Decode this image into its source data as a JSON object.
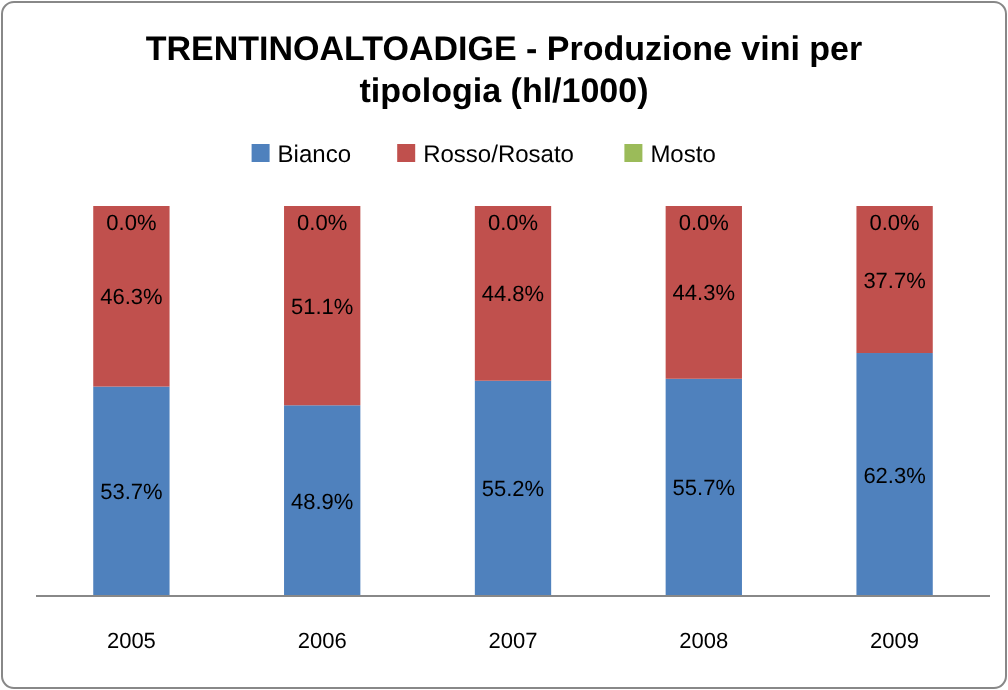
{
  "chart_data": {
    "type": "bar",
    "title": "TRENTINOALTOADIGE - Produzione vini per tipologia (hl/1000)",
    "categories": [
      "2005",
      "2006",
      "2007",
      "2008",
      "2009"
    ],
    "stacked": true,
    "legend": "top",
    "ylim": [
      0,
      100
    ],
    "tick_labels": "x",
    "series": [
      {
        "name": "Bianco",
        "color": "#4f81bd",
        "values": [
          53.7,
          48.9,
          55.2,
          55.7,
          62.3
        ],
        "value_labels": [
          "53.7%",
          "48.9%",
          "55.2%",
          "55.7%",
          "62.3%"
        ]
      },
      {
        "name": "Rosso/Rosato",
        "color": "#c0504d",
        "values": [
          46.3,
          51.1,
          44.8,
          44.3,
          37.7
        ],
        "value_labels": [
          "46.3%",
          "51.1%",
          "44.8%",
          "44.3%",
          "37.7%"
        ]
      },
      {
        "name": "Mosto",
        "color": "#9bbb59",
        "values": [
          0,
          0,
          0,
          0,
          0
        ],
        "value_labels": [
          "0.0%",
          "0.0%",
          "0.0%",
          "0.0%",
          "0.0%"
        ]
      }
    ]
  }
}
